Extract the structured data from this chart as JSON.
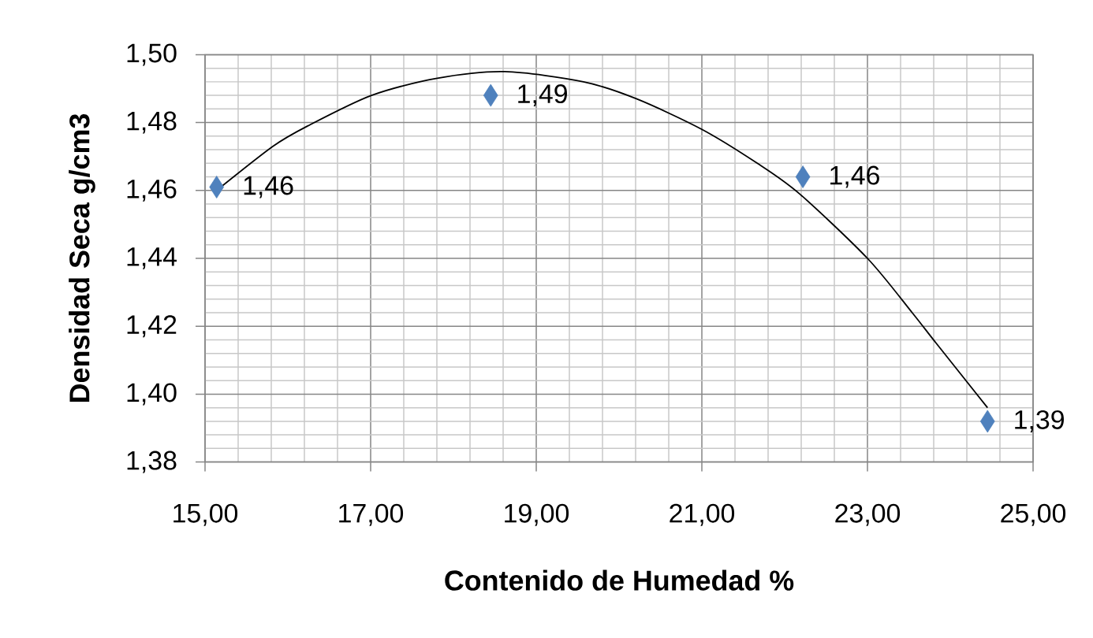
{
  "chart_data": {
    "type": "scatter",
    "xlabel": "Contenido de Humedad %",
    "ylabel": "Densidad Seca g/cm3",
    "xlim": [
      15,
      25
    ],
    "ylim": [
      1.38,
      1.5
    ],
    "xticks": [
      {
        "value": 15,
        "label": "15,00"
      },
      {
        "value": 17,
        "label": "17,00"
      },
      {
        "value": 19,
        "label": "19,00"
      },
      {
        "value": 21,
        "label": "21,00"
      },
      {
        "value": 23,
        "label": "23,00"
      },
      {
        "value": 25,
        "label": "25,00"
      }
    ],
    "yticks": [
      {
        "value": 1.38,
        "label": "1,38"
      },
      {
        "value": 1.4,
        "label": "1,40"
      },
      {
        "value": 1.42,
        "label": "1,42"
      },
      {
        "value": 1.44,
        "label": "1,44"
      },
      {
        "value": 1.46,
        "label": "1,46"
      },
      {
        "value": 1.48,
        "label": "1,48"
      },
      {
        "value": 1.5,
        "label": "1,50"
      }
    ],
    "grid": true,
    "series": [
      {
        "color": "#4f81bd",
        "marker": "diamond",
        "x": [
          15.14,
          18.45,
          22.22,
          24.45
        ],
        "values": [
          1.461,
          1.488,
          1.464,
          1.392
        ],
        "value_labels": [
          "1,46",
          "1,49",
          "1,46",
          "1,39"
        ]
      },
      {
        "type": "line",
        "color": "#000000",
        "marker": "none",
        "line_style": "solid",
        "x": [
          15.14,
          15.82,
          16.24,
          17.01,
          17.79,
          18.62,
          19.57,
          20.21,
          21.0,
          21.67,
          22.18,
          23.0,
          23.54,
          23.83,
          24.45
        ],
        "values": [
          1.46,
          1.473,
          1.479,
          1.488,
          1.493,
          1.495,
          1.492,
          1.487,
          1.478,
          1.468,
          1.459,
          1.44,
          1.424,
          1.415,
          1.396
        ]
      }
    ]
  }
}
